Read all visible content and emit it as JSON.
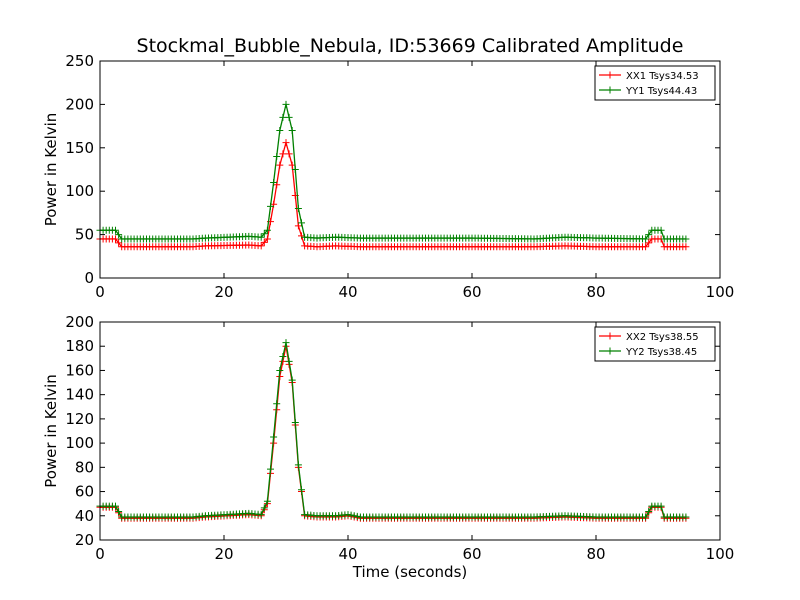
{
  "figure": {
    "title": "Stockmal_Bubble_Nebula, ID:53669 Calibrated Amplitude"
  },
  "colors": {
    "xx": "#ff0000",
    "yy": "#008000",
    "frame": "#000000",
    "background": "#ffffff"
  },
  "chart_data": [
    {
      "type": "line",
      "title": "Stockmal_Bubble_Nebula, ID:53669 Calibrated Amplitude",
      "xlabel": "",
      "ylabel": "Power in Kelvin",
      "xlim": [
        0,
        100
      ],
      "ylim": [
        0,
        250
      ],
      "xticks": [
        "0",
        "20",
        "40",
        "60",
        "80",
        "100"
      ],
      "yticks": [
        "0",
        "50",
        "100",
        "150",
        "200",
        "250"
      ],
      "grid": false,
      "legend_position": "top-right",
      "marker": "+",
      "sample_interval": 0.5,
      "series": [
        {
          "name": "XX1 Tsys34.53",
          "color": "#ff0000",
          "points": [
            [
              0,
              45
            ],
            [
              2.5,
              45
            ],
            [
              3.5,
              36
            ],
            [
              15,
              36
            ],
            [
              17,
              37
            ],
            [
              24,
              38
            ],
            [
              26,
              37
            ],
            [
              27,
              45
            ],
            [
              28,
              85
            ],
            [
              29,
              130
            ],
            [
              30,
              156
            ],
            [
              31,
              130
            ],
            [
              32,
              60
            ],
            [
              33,
              37
            ],
            [
              35,
              36
            ],
            [
              38,
              37
            ],
            [
              42,
              36
            ],
            [
              60,
              36
            ],
            [
              70,
              36
            ],
            [
              75,
              37
            ],
            [
              80,
              36
            ],
            [
              88,
              36
            ],
            [
              89,
              45
            ],
            [
              90.5,
              45
            ],
            [
              91,
              36
            ],
            [
              94.5,
              36
            ]
          ]
        },
        {
          "name": "YY1 Tsys44.43",
          "color": "#008000",
          "points": [
            [
              0,
              55
            ],
            [
              2.5,
              55
            ],
            [
              3.5,
              45
            ],
            [
              15,
              45
            ],
            [
              17,
              46
            ],
            [
              24,
              48
            ],
            [
              26,
              47
            ],
            [
              27,
              55
            ],
            [
              28,
              110
            ],
            [
              29,
              170
            ],
            [
              30,
              200
            ],
            [
              31,
              170
            ],
            [
              32,
              80
            ],
            [
              33,
              47
            ],
            [
              35,
              46
            ],
            [
              38,
              47
            ],
            [
              42,
              46
            ],
            [
              60,
              46
            ],
            [
              70,
              45
            ],
            [
              75,
              47
            ],
            [
              80,
              46
            ],
            [
              88,
              45
            ],
            [
              89,
              55
            ],
            [
              90.5,
              55
            ],
            [
              91,
              45
            ],
            [
              94.5,
              45
            ]
          ]
        }
      ]
    },
    {
      "type": "line",
      "title": "",
      "xlabel": "Time (seconds)",
      "ylabel": "Power in Kelvin",
      "xlim": [
        0,
        100
      ],
      "ylim": [
        20,
        200
      ],
      "xticks": [
        "0",
        "20",
        "40",
        "60",
        "80",
        "100"
      ],
      "yticks": [
        "20",
        "40",
        "60",
        "80",
        "100",
        "120",
        "140",
        "160",
        "180",
        "200"
      ],
      "grid": false,
      "legend_position": "top-right",
      "marker": "+",
      "sample_interval": 0.5,
      "series": [
        {
          "name": "XX2 Tsys38.55",
          "color": "#ff0000",
          "points": [
            [
              0,
              47
            ],
            [
              2.5,
              47
            ],
            [
              3.5,
              38
            ],
            [
              15,
              38
            ],
            [
              17,
              39
            ],
            [
              24,
              41
            ],
            [
              26,
              40
            ],
            [
              27,
              50
            ],
            [
              28,
              100
            ],
            [
              29,
              155
            ],
            [
              30,
              180
            ],
            [
              31,
              150
            ],
            [
              32,
              80
            ],
            [
              33,
              40
            ],
            [
              35,
              39
            ],
            [
              38,
              39
            ],
            [
              40,
              40
            ],
            [
              42,
              38
            ],
            [
              60,
              38
            ],
            [
              70,
              38
            ],
            [
              75,
              39
            ],
            [
              80,
              38
            ],
            [
              88,
              38
            ],
            [
              89,
              47
            ],
            [
              90.5,
              47
            ],
            [
              91,
              38
            ],
            [
              94.5,
              38
            ]
          ]
        },
        {
          "name": "YY2 Tsys38.45",
          "color": "#008000",
          "points": [
            [
              0,
              48
            ],
            [
              2.5,
              48
            ],
            [
              3.5,
              39
            ],
            [
              15,
              39
            ],
            [
              17,
              40
            ],
            [
              24,
              42
            ],
            [
              26,
              41
            ],
            [
              27,
              52
            ],
            [
              28,
              105
            ],
            [
              29,
              160
            ],
            [
              30,
              183
            ],
            [
              31,
              152
            ],
            [
              32,
              82
            ],
            [
              33,
              41
            ],
            [
              35,
              40
            ],
            [
              38,
              40
            ],
            [
              40,
              41
            ],
            [
              42,
              39
            ],
            [
              60,
              39
            ],
            [
              70,
              39
            ],
            [
              75,
              40
            ],
            [
              80,
              39
            ],
            [
              88,
              39
            ],
            [
              89,
              48
            ],
            [
              90.5,
              48
            ],
            [
              91,
              39
            ],
            [
              94.5,
              39
            ]
          ]
        }
      ]
    }
  ]
}
